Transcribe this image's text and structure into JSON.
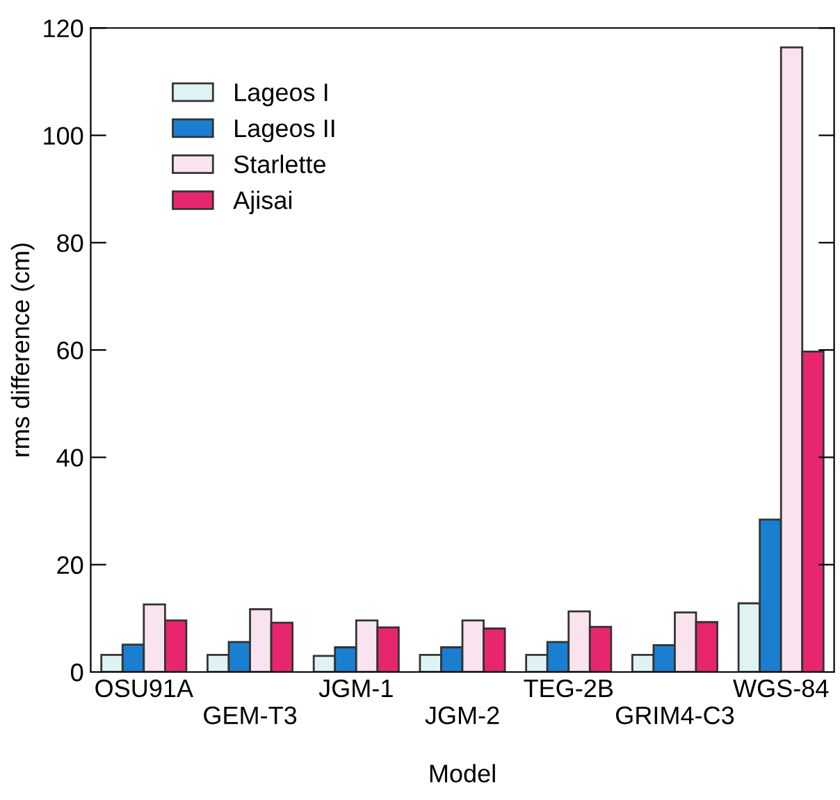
{
  "chart_data": {
    "type": "bar",
    "xlabel": "Model",
    "ylabel": "rms difference (cm)",
    "categories": [
      "OSU91A",
      "GEM-T3",
      "JGM-1",
      "JGM-2",
      "TEG-2B",
      "GRIM4-C3",
      "WGS-84"
    ],
    "series": [
      {
        "name": "Lageos I",
        "color": "#dff3f5",
        "values": [
          3.2,
          3.2,
          3.0,
          3.2,
          3.2,
          3.2,
          12.8
        ]
      },
      {
        "name": "Lageos II",
        "color": "#1a7fd0",
        "values": [
          5.1,
          5.6,
          4.6,
          4.6,
          5.6,
          5.0,
          28.4
        ]
      },
      {
        "name": "Starlette",
        "color": "#f9e3ee",
        "values": [
          12.6,
          11.7,
          9.6,
          9.6,
          11.3,
          11.1,
          116.4
        ]
      },
      {
        "name": "Ajisai",
        "color": "#e8266f",
        "values": [
          9.6,
          9.2,
          8.3,
          8.1,
          8.4,
          9.3,
          59.7
        ]
      }
    ],
    "ylim": [
      0,
      120
    ],
    "yticks": [
      0,
      20,
      40,
      60,
      80,
      100,
      120
    ],
    "grid": false,
    "legend": "top left"
  }
}
